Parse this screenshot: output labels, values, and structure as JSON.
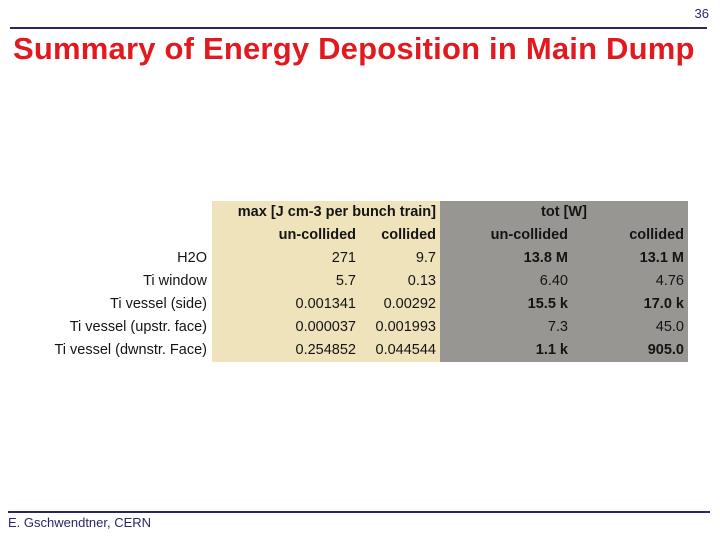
{
  "slide": {
    "page_number": "36",
    "title": "Summary of Energy Deposition in Main Dump",
    "footer": "E. Gschwendtner, CERN"
  },
  "colors": {
    "title": "#e2191f",
    "accent_navy": "#2b2766",
    "table_cream_bg": "#efe3bc",
    "table_gray_bg": "#989693",
    "table_text": "#141414"
  },
  "table": {
    "group_headers": {
      "max": "max [J cm-3 per bunch train]",
      "tot": "tot [W]"
    },
    "sub_headers": [
      "un-collided",
      "collided",
      "un-collided",
      "collided"
    ],
    "rows": [
      {
        "label": "H2O",
        "cells": [
          "271",
          "9.7",
          "13.8 M",
          "13.1 M"
        ],
        "bold": [
          false,
          false,
          true,
          true
        ]
      },
      {
        "label": "Ti window",
        "cells": [
          "5.7",
          "0.13",
          "6.40",
          "4.76"
        ],
        "bold": [
          false,
          false,
          false,
          false
        ]
      },
      {
        "label": "Ti vessel (side)",
        "cells": [
          "0.001341",
          "0.00292",
          "15.5 k",
          "17.0 k"
        ],
        "bold": [
          false,
          false,
          true,
          true
        ]
      },
      {
        "label": "Ti vessel (upstr. face)",
        "cells": [
          "0.000037",
          "0.001993",
          "7.3",
          "45.0"
        ],
        "bold": [
          false,
          false,
          false,
          false
        ]
      },
      {
        "label": "Ti vessel (dwnstr. Face)",
        "cells": [
          "0.254852",
          "0.044544",
          "1.1 k",
          "905.0"
        ],
        "bold": [
          false,
          false,
          true,
          true
        ]
      }
    ]
  }
}
